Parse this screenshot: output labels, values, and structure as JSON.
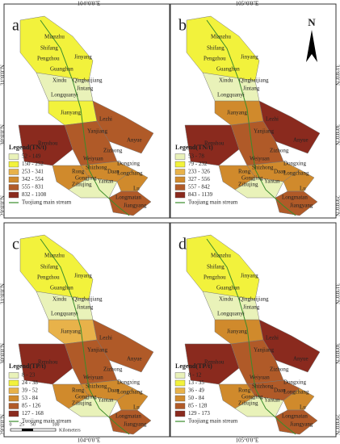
{
  "longitude_labels": [
    "104°0'0\"E",
    "105°0'0\"E"
  ],
  "latitude_labels": [
    "31°0'0\"N",
    "30°0'0\"N",
    "29°0'0\"N"
  ],
  "north": "N",
  "stream_label": "Tuojiang main stream",
  "scale_bar": {
    "ticks": [
      "0",
      "25",
      "50",
      "100"
    ],
    "unit": "Kilometers"
  },
  "regions": [
    {
      "labels": [
        "Mianzhu",
        "Shifang",
        "Pengzhou",
        "Jinyang",
        "Guanghan"
      ]
    },
    {
      "labels": [
        "Xindu",
        "Qingbaijiang",
        "Jintang",
        "Longquanyi"
      ]
    },
    {
      "labels": [
        "Jianyang"
      ]
    },
    {
      "labels": [
        "Renshou"
      ]
    },
    {
      "labels": [
        "Lezhi",
        "Anyue"
      ]
    },
    {
      "labels": [
        "Yanjiang",
        "Zizhong"
      ]
    },
    {
      "labels": [
        "Weiyuan",
        "Rong"
      ]
    },
    {
      "labels": [
        "Dongxing",
        "Shizhong"
      ]
    },
    {
      "labels": [
        "Gongjing",
        "Daan",
        "Ziliujing",
        "Yantan"
      ]
    },
    {
      "labels": [
        "Longchang"
      ]
    },
    {
      "labels": [
        "Lu",
        "Longmatan",
        "Jiangyang"
      ]
    }
  ],
  "panels": [
    {
      "letter": "a",
      "legend_title": "Legend(TN/t)",
      "legend": [
        {
          "label": "52 - 149",
          "color": "#e9f2b9"
        },
        {
          "label": "150 - 252",
          "color": "#f2f23c"
        },
        {
          "label": "253 - 341",
          "color": "#e8b24a"
        },
        {
          "label": "342 - 554",
          "color": "#d08a2c"
        },
        {
          "label": "555 - 831",
          "color": "#b05a28"
        },
        {
          "label": "832 - 1108",
          "color": "#8a2a1e"
        }
      ],
      "fills": [
        "#f2f23c",
        "#e9f2b9",
        "#f2f23c",
        "#8a2a1e",
        "#b05a28",
        "#b05a28",
        "#d08a2c",
        "#d08a2c",
        "#e9f2b9",
        "#d08a2c",
        "#b05a28"
      ]
    },
    {
      "letter": "b",
      "legend_title": "Legend(TN/t)",
      "legend": [
        {
          "label": "53 - 78",
          "color": "#e9f2b9"
        },
        {
          "label": "79 - 232",
          "color": "#f2f23c"
        },
        {
          "label": "233 - 326",
          "color": "#e8b24a"
        },
        {
          "label": "327 - 556",
          "color": "#d08a2c"
        },
        {
          "label": "557 - 842",
          "color": "#b05a28"
        },
        {
          "label": "843 - 1139",
          "color": "#8a2a1e"
        }
      ],
      "fills": [
        "#f2f23c",
        "#e9f2b9",
        "#d08a2c",
        "#8a2a1e",
        "#8a2a1e",
        "#b05a28",
        "#d08a2c",
        "#d08a2c",
        "#e9f2b9",
        "#d08a2c",
        "#b05a28"
      ]
    },
    {
      "letter": "c",
      "legend_title": "Legend(TP/t)",
      "legend": [
        {
          "label": "8 - 23",
          "color": "#e9f2b9"
        },
        {
          "label": "24 - 38",
          "color": "#f2f23c"
        },
        {
          "label": "39 - 52",
          "color": "#e8b24a"
        },
        {
          "label": "53 - 84",
          "color": "#d08a2c"
        },
        {
          "label": "85 - 126",
          "color": "#b05a28"
        },
        {
          "label": "127 - 168",
          "color": "#8a2a1e"
        }
      ],
      "fills": [
        "#f2f23c",
        "#e9f2b9",
        "#e8b24a",
        "#8a2a1e",
        "#b05a28",
        "#b05a28",
        "#d08a2c",
        "#d08a2c",
        "#e9f2b9",
        "#d08a2c",
        "#b05a28"
      ]
    },
    {
      "letter": "d",
      "legend_title": "Legend(TP/t)",
      "legend": [
        {
          "label": "8 - 12",
          "color": "#e9f2b9"
        },
        {
          "label": "13 - 35",
          "color": "#f2f23c"
        },
        {
          "label": "36 - 49",
          "color": "#e8b24a"
        },
        {
          "label": "50 - 84",
          "color": "#d08a2c"
        },
        {
          "label": "85 - 128",
          "color": "#b05a28"
        },
        {
          "label": "129 - 173",
          "color": "#8a2a1e"
        }
      ],
      "fills": [
        "#f2f23c",
        "#e9f2b9",
        "#d08a2c",
        "#8a2a1e",
        "#8a2a1e",
        "#b05a28",
        "#d08a2c",
        "#b05a28",
        "#e9f2b9",
        "#d08a2c",
        "#b05a28"
      ]
    }
  ]
}
